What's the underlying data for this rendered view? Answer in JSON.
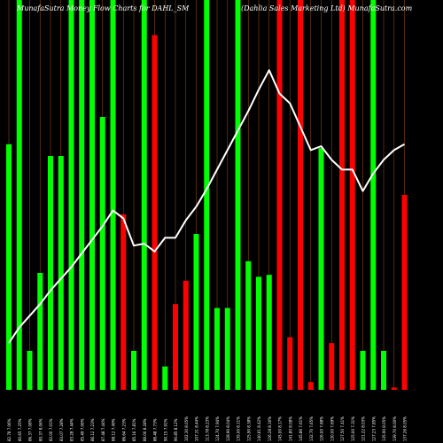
{
  "header": {
    "left": "MunafaSutra  Money Flow  Charts for DAHL_SM",
    "right": "(Dahlia Sales Marketing Ltd) MunafaSutra.com"
  },
  "colors": {
    "background": "#000000",
    "up": "#00ff00",
    "down": "#ff0000",
    "line": "#ffffff",
    "grid": "#8b4513",
    "axis_text": "#ffffff"
  },
  "chart_data": {
    "type": "bar",
    "title": "MunafaSutra  Money Flow  Charts for DAHL_SM",
    "subtitle": "(Dahlia Sales Marketing Ltd) MunafaSutra.com",
    "xlabel": "",
    "ylabel": "",
    "ylim": [
      0,
      100
    ],
    "grid": true,
    "categories": [
      "82.78 7.06%",
      "80.65 7.25%",
      "86.37 7.08%",
      "80.37 8.06%",
      "82.00 7.01%",
      "83.07 7.28%",
      "83.28 7.44%",
      "85.49 7.06%",
      "86.12 7.23%",
      "87.48 7.44%",
      "88.12 7.49%",
      "86.64 7.23%",
      "85.16 7.81%",
      "86.00 8.28%",
      "86.48 7.73%",
      "90.15 7.91%",
      "90.85 8.12%",
      "102.30 8.05%",
      "107.31 8.44%",
      "113.78 8.23%",
      "124.70 7.94%",
      "128.90 8.04%",
      "135.00 8.11%",
      "125.90 8.38%",
      "140.61 8.42%",
      "126.28 8.16%",
      "145.00 8.17%",
      "141.80 8.08%",
      "145.86 7.61%",
      "132.70 7.65%",
      "126.00 7.88%",
      "130.00 7.69%",
      "127.50 7.41%",
      "125.00 7.31%",
      "121.22 8.03%",
      "127.23 7.85%",
      "135.90 8.05%",
      "139.70 8.00%",
      "137.26 8.05%"
    ],
    "series": [
      {
        "values": [
          63,
          100,
          10,
          30,
          60,
          60,
          100,
          100,
          100,
          70,
          100,
          45,
          10,
          100,
          91,
          6,
          22,
          28,
          40,
          100,
          21,
          21,
          100,
          33,
          29,
          29.5,
          100,
          13.5,
          100,
          2,
          62,
          12,
          100,
          100,
          10,
          100,
          10,
          0.6,
          50
        ],
        "direction": [
          "up",
          "up",
          "up",
          "up",
          "up",
          "up",
          "up",
          "up",
          "up",
          "up",
          "up",
          "down",
          "up",
          "up",
          "down",
          "up",
          "down",
          "down",
          "up",
          "up",
          "up",
          "up",
          "up",
          "up",
          "up",
          "up",
          "down",
          "down",
          "down",
          "down",
          "up",
          "down",
          "down",
          "down",
          "up",
          "up",
          "up",
          "down",
          "down"
        ]
      },
      {
        "type": "line",
        "values": [
          12,
          16,
          19,
          22,
          25.5,
          28.5,
          31.5,
          35,
          38.5,
          42,
          46,
          44,
          37,
          37.5,
          35.5,
          39,
          39,
          43.5,
          47,
          51.5,
          56.5,
          61.5,
          66.5,
          71.5,
          77,
          82,
          76,
          73.5,
          67.5,
          61.5,
          62.5,
          59,
          56.5,
          56.5,
          51,
          55.5,
          59,
          61.5,
          63
        ]
      }
    ]
  }
}
